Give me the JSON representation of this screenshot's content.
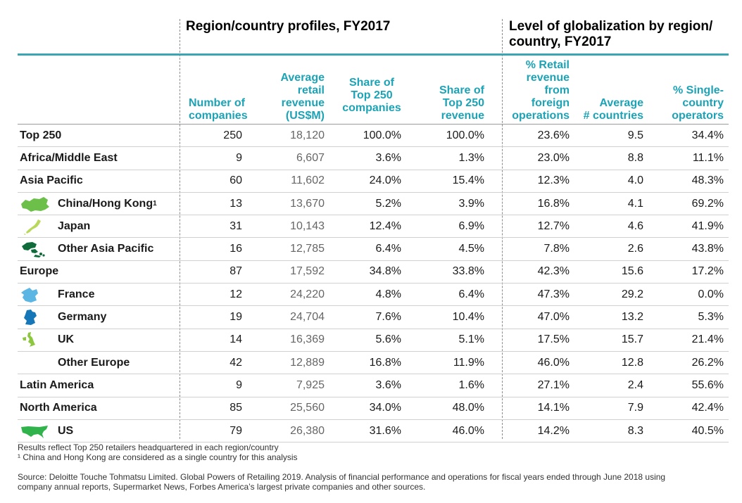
{
  "section_left_title": "Region/country profiles, FY2017",
  "section_right_title_line1": "Level of globalization by region/",
  "section_right_title_line2": "country, FY2017",
  "columns": {
    "num_companies": [
      "Number of",
      "companies"
    ],
    "avg_revenue": [
      "Average",
      "retail",
      "revenue",
      "(US$M)"
    ],
    "share_companies": [
      "Share of",
      "Top 250",
      "companies"
    ],
    "share_revenue": [
      "Share of",
      "Top 250",
      "revenue"
    ],
    "pct_foreign": [
      "% Retail",
      "revenue",
      "from",
      "foreign",
      "operations"
    ],
    "avg_countries": [
      "Average",
      "# countries"
    ],
    "pct_single": [
      "% Single-",
      "country",
      "operators"
    ]
  },
  "rows": [
    {
      "name": "Top 250",
      "sup": "",
      "icon": "",
      "n": "250",
      "avg": "18,120",
      "sc": "100.0%",
      "sr": "100.0%",
      "pf": "23.6%",
      "ac": "9.5",
      "ps": "34.4%"
    },
    {
      "name": "Africa/Middle East",
      "sup": "",
      "icon": "",
      "n": "9",
      "avg": "6,607",
      "sc": "3.6%",
      "sr": "1.3%",
      "pf": "23.0%",
      "ac": "8.8",
      "ps": "11.1%"
    },
    {
      "name": "Asia Pacific",
      "sup": "",
      "icon": "",
      "n": "60",
      "avg": "11,602",
      "sc": "24.0%",
      "sr": "15.4%",
      "pf": "12.3%",
      "ac": "4.0",
      "ps": "48.3%"
    },
    {
      "name": "China/Hong Kong",
      "sup": "1",
      "icon": "china-map-icon",
      "n": "13",
      "avg": "13,670",
      "sc": "5.2%",
      "sr": "3.9%",
      "pf": "16.8%",
      "ac": "4.1",
      "ps": "69.2%"
    },
    {
      "name": "Japan",
      "sup": "",
      "icon": "japan-map-icon",
      "n": "31",
      "avg": "10,143",
      "sc": "12.4%",
      "sr": "6.9%",
      "pf": "12.7%",
      "ac": "4.6",
      "ps": "41.9%"
    },
    {
      "name": "Other Asia Pacific",
      "sup": "",
      "icon": "asia-pacific-map-icon",
      "n": "16",
      "avg": "12,785",
      "sc": "6.4%",
      "sr": "4.5%",
      "pf": "7.8%",
      "ac": "2.6",
      "ps": "43.8%"
    },
    {
      "name": "Europe",
      "sup": "",
      "icon": "",
      "n": "87",
      "avg": "17,592",
      "sc": "34.8%",
      "sr": "33.8%",
      "pf": "42.3%",
      "ac": "15.6",
      "ps": "17.2%"
    },
    {
      "name": "France",
      "sup": "",
      "icon": "france-map-icon",
      "n": "12",
      "avg": "24,220",
      "sc": "4.8%",
      "sr": "6.4%",
      "pf": "47.3%",
      "ac": "29.2",
      "ps": "0.0%"
    },
    {
      "name": "Germany",
      "sup": "",
      "icon": "germany-map-icon",
      "n": "19",
      "avg": "24,704",
      "sc": "7.6%",
      "sr": "10.4%",
      "pf": "47.0%",
      "ac": "13.2",
      "ps": "5.3%"
    },
    {
      "name": "UK",
      "sup": "",
      "icon": "uk-map-icon",
      "n": "14",
      "avg": "16,369",
      "sc": "5.6%",
      "sr": "5.1%",
      "pf": "17.5%",
      "ac": "15.7",
      "ps": "21.4%"
    },
    {
      "name": "Other Europe",
      "sup": "",
      "icon": "blank",
      "n": "42",
      "avg": "12,889",
      "sc": "16.8%",
      "sr": "11.9%",
      "pf": "46.0%",
      "ac": "12.8",
      "ps": "26.2%"
    },
    {
      "name": "Latin America",
      "sup": "",
      "icon": "",
      "n": "9",
      "avg": "7,925",
      "sc": "3.6%",
      "sr": "1.6%",
      "pf": "27.1%",
      "ac": "2.4",
      "ps": "55.6%"
    },
    {
      "name": "North America",
      "sup": "",
      "icon": "",
      "n": "85",
      "avg": "25,560",
      "sc": "34.0%",
      "sr": "48.0%",
      "pf": "14.1%",
      "ac": "7.9",
      "ps": "42.4%"
    },
    {
      "name": "US",
      "sup": "",
      "icon": "us-map-icon",
      "n": "79",
      "avg": "26,380",
      "sc": "31.6%",
      "sr": "46.0%",
      "pf": "14.2%",
      "ac": "8.3",
      "ps": "40.5%"
    }
  ],
  "icon_colors": {
    "china-map-icon": "#6cc04a",
    "japan-map-icon": "#b8d85a",
    "asia-pacific-map-icon": "#0f6b3a",
    "france-map-icon": "#5cb6e4",
    "germany-map-icon": "#1577b8",
    "uk-map-icon": "#8dc63f",
    "us-map-icon": "#2fb34a"
  },
  "note_line1": "Results reflect Top 250 retailers headquartered in each region/country",
  "note_line2": "¹ China and Hong Kong are considered as a single country for this analysis",
  "source_line1": "Source: Deloitte Touche Tohmatsu Limited. Global Powers of Retailing 2019. Analysis of financial performance and operations for fiscal years ended through June 2018 using",
  "source_line2": "company annual reports, Supermarket News, Forbes America’s largest private companies and other sources."
}
